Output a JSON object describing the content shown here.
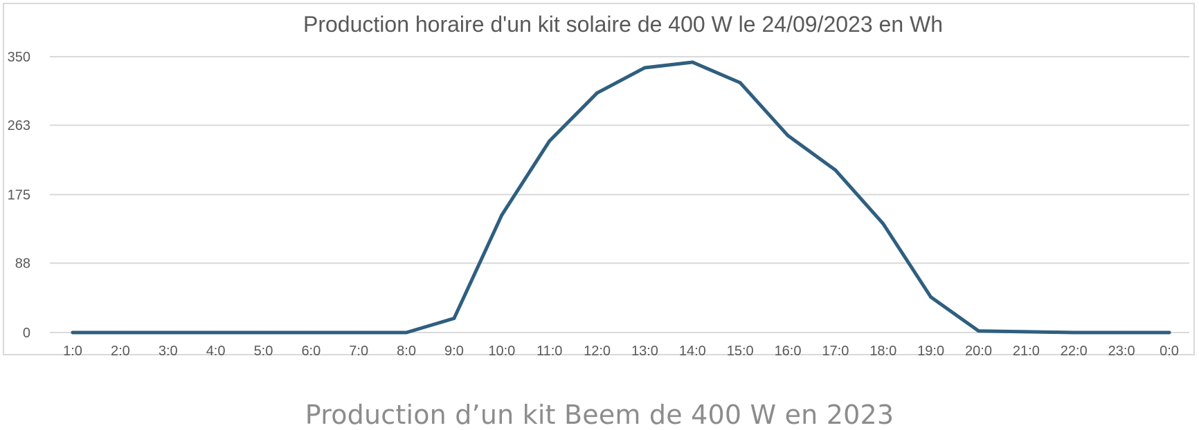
{
  "chart_data": {
    "type": "line",
    "title": "Production horaire d'un kit solaire de 400 W le 24/09/2023 en Wh",
    "xlabel": "",
    "ylabel": "",
    "x": [
      "1:0",
      "2:0",
      "3:0",
      "4:0",
      "5:0",
      "6:0",
      "7:0",
      "8:0",
      "9:0",
      "10:0",
      "11:0",
      "12:0",
      "13:0",
      "14:0",
      "15:0",
      "16:0",
      "17:0",
      "18:0",
      "19:0",
      "20:0",
      "21:0",
      "22:0",
      "23:0",
      "0:0"
    ],
    "series": [
      {
        "values": [
          0,
          0,
          0,
          0,
          0,
          0,
          0,
          0,
          18,
          149,
          243,
          304,
          336,
          343,
          317,
          250,
          206,
          138,
          45,
          2,
          1,
          0,
          0,
          0
        ]
      }
    ],
    "y_ticks": [
      "0",
      "88",
      "175",
      "263",
      "350"
    ],
    "ylim": [
      0,
      350
    ],
    "grid": true,
    "legend": "none",
    "colors": {
      "line": "#2f5f7f",
      "grid": "#d9d9d9",
      "text": "#595959",
      "title": "#595959"
    }
  },
  "caption": "Production d’un kit Beem de 400 W en 2023"
}
